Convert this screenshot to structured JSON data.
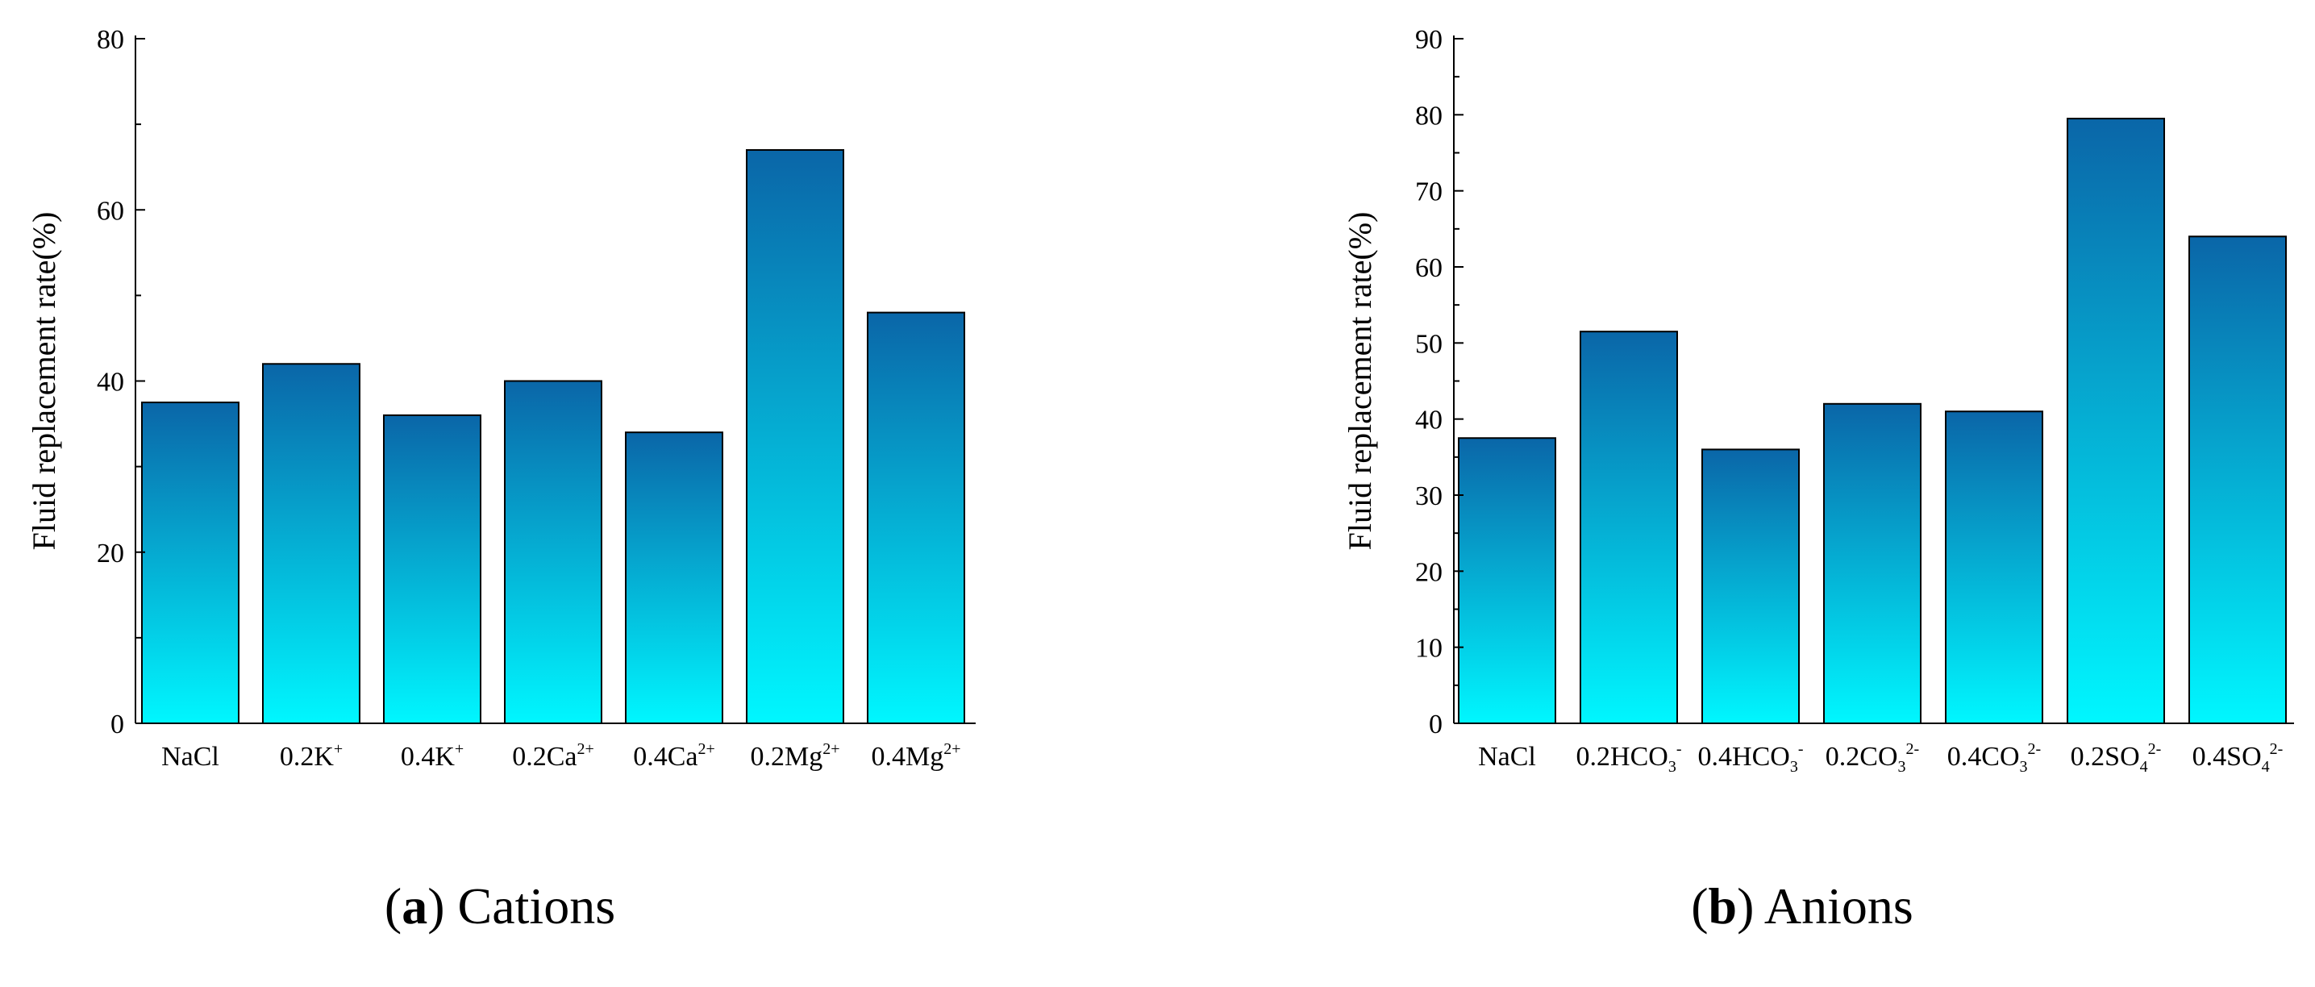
{
  "charts": [
    {
      "id": "a",
      "caption_letter": "a",
      "caption_text": "Cations",
      "chart_data": {
        "type": "bar",
        "categories": [
          {
            "base": "NaCl",
            "sub": "",
            "sup": ""
          },
          {
            "base": "0.2K",
            "sub": "",
            "sup": "+"
          },
          {
            "base": "0.4K",
            "sub": "",
            "sup": "+"
          },
          {
            "base": "0.2Ca",
            "sub": "",
            "sup": "2+"
          },
          {
            "base": "0.4Ca",
            "sub": "",
            "sup": "2+"
          },
          {
            "base": "0.2Mg",
            "sub": "",
            "sup": "2+"
          },
          {
            "base": "0.4Mg",
            "sub": "",
            "sup": "2+"
          }
        ],
        "values": [
          37.5,
          42,
          36,
          40,
          34,
          67,
          48
        ],
        "ylabel": "Fluid replacement rate(%)",
        "xlabel": "",
        "ylim": [
          0,
          80
        ],
        "yticks": [
          0,
          20,
          40,
          60,
          80
        ],
        "minor_step": 10,
        "grid": false,
        "bar_gradient": {
          "top": "#0a66a8",
          "bottom": "#00f7ff"
        }
      }
    },
    {
      "id": "b",
      "caption_letter": "b",
      "caption_text": "Anions",
      "chart_data": {
        "type": "bar",
        "categories": [
          {
            "base": "NaCl",
            "sub": "",
            "sup": ""
          },
          {
            "base": "0.2HCO",
            "sub": "3",
            "sup": "-"
          },
          {
            "base": "0.4HCO",
            "sub": "3",
            "sup": "-"
          },
          {
            "base": "0.2CO",
            "sub": "3",
            "sup": "2-"
          },
          {
            "base": "0.4CO",
            "sub": "3",
            "sup": "2-"
          },
          {
            "base": "0.2SO",
            "sub": "4",
            "sup": "2-"
          },
          {
            "base": "0.4SO",
            "sub": "4",
            "sup": "2-"
          }
        ],
        "values": [
          37.5,
          51.5,
          36,
          42,
          41,
          79.5,
          64
        ],
        "ylabel": "Fluid replacement rate(%)",
        "xlabel": "",
        "ylim": [
          0,
          90
        ],
        "yticks": [
          0,
          10,
          20,
          30,
          40,
          50,
          60,
          70,
          80,
          90
        ],
        "minor_step": 5,
        "grid": false,
        "bar_gradient": {
          "top": "#0a66a8",
          "bottom": "#00f7ff"
        }
      }
    }
  ]
}
